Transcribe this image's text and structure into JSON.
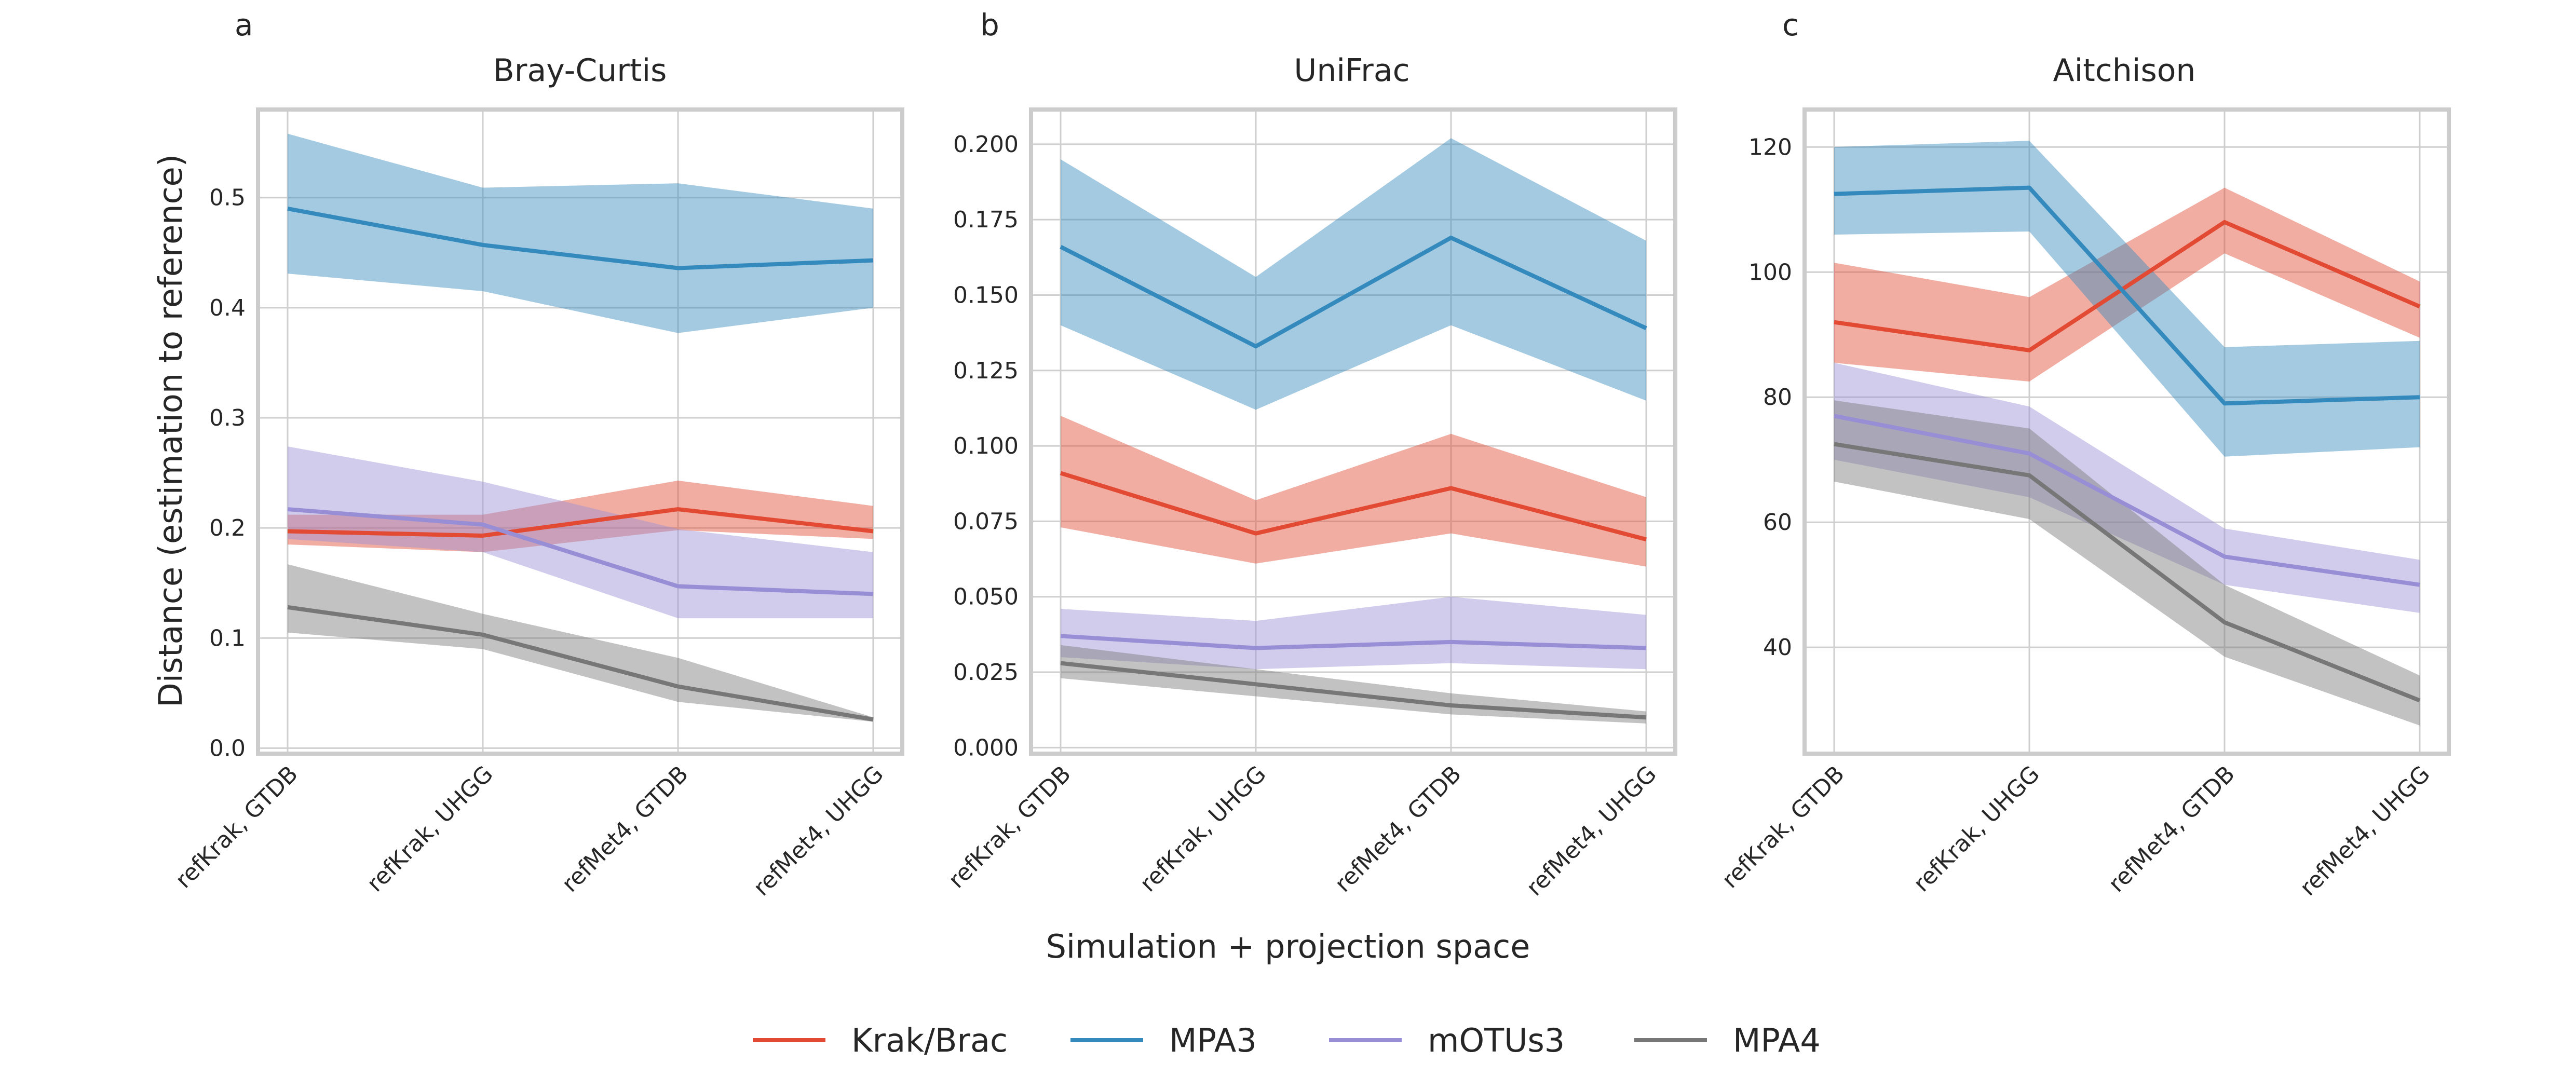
{
  "figure": {
    "ylabel": "Distance (estimation to reference)",
    "xlabel": "Simulation + projection space",
    "categories": [
      "refKrak, GTDB",
      "refKrak, UHGG",
      "refMet4, GTDB",
      "refMet4, UHGG"
    ]
  },
  "legend": {
    "placement": "bottom-center",
    "items": [
      {
        "label": "Krak/Brac",
        "color": "#e24a33"
      },
      {
        "label": "MPA3",
        "color": "#348abd"
      },
      {
        "label": "mOTUs3",
        "color": "#988ed5"
      },
      {
        "label": "MPA4",
        "color": "#777777"
      }
    ]
  },
  "chart_data": [
    {
      "type": "line",
      "letter": "a",
      "title": "Bray-Curtis",
      "ylim": [
        -0.005,
        0.58
      ],
      "yticks": [
        0.0,
        0.1,
        0.2,
        0.3,
        0.4,
        0.5
      ],
      "ytick_labels": [
        "0.0",
        "0.1",
        "0.2",
        "0.3",
        "0.4",
        "0.5"
      ],
      "grid": true,
      "series": [
        {
          "name": "Krak/Brac",
          "color": "#e24a33",
          "values": [
            0.197,
            0.193,
            0.217,
            0.197
          ],
          "lower": [
            0.185,
            0.178,
            0.198,
            0.19
          ],
          "upper": [
            0.212,
            0.212,
            0.243,
            0.22
          ]
        },
        {
          "name": "MPA3",
          "color": "#348abd",
          "values": [
            0.49,
            0.457,
            0.436,
            0.443
          ],
          "lower": [
            0.431,
            0.415,
            0.377,
            0.4
          ],
          "upper": [
            0.558,
            0.509,
            0.513,
            0.49
          ]
        },
        {
          "name": "mOTUs3",
          "color": "#988ed5",
          "values": [
            0.217,
            0.203,
            0.147,
            0.14
          ],
          "lower": [
            0.19,
            0.178,
            0.118,
            0.118
          ],
          "upper": [
            0.274,
            0.242,
            0.199,
            0.178
          ]
        },
        {
          "name": "MPA4",
          "color": "#777777",
          "values": [
            0.128,
            0.103,
            0.056,
            0.026
          ],
          "lower": [
            0.105,
            0.09,
            0.042,
            0.024
          ],
          "upper": [
            0.167,
            0.122,
            0.082,
            0.028
          ]
        }
      ]
    },
    {
      "type": "line",
      "letter": "b",
      "title": "UniFrac",
      "ylim": [
        -0.002,
        0.2115
      ],
      "yticks": [
        0.0,
        0.025,
        0.05,
        0.075,
        0.1,
        0.125,
        0.15,
        0.175,
        0.2
      ],
      "ytick_labels": [
        "0.000",
        "0.025",
        "0.050",
        "0.075",
        "0.100",
        "0.125",
        "0.150",
        "0.175",
        "0.200"
      ],
      "grid": true,
      "series": [
        {
          "name": "Krak/Brac",
          "color": "#e24a33",
          "values": [
            0.091,
            0.071,
            0.086,
            0.069
          ],
          "lower": [
            0.073,
            0.061,
            0.071,
            0.06
          ],
          "upper": [
            0.11,
            0.082,
            0.104,
            0.083
          ]
        },
        {
          "name": "MPA3",
          "color": "#348abd",
          "values": [
            0.166,
            0.133,
            0.169,
            0.139
          ],
          "lower": [
            0.14,
            0.112,
            0.14,
            0.115
          ],
          "upper": [
            0.195,
            0.156,
            0.202,
            0.168
          ]
        },
        {
          "name": "mOTUs3",
          "color": "#988ed5",
          "values": [
            0.037,
            0.033,
            0.035,
            0.033
          ],
          "lower": [
            0.03,
            0.026,
            0.028,
            0.026
          ],
          "upper": [
            0.046,
            0.042,
            0.05,
            0.044
          ]
        },
        {
          "name": "MPA4",
          "color": "#777777",
          "values": [
            0.028,
            0.021,
            0.014,
            0.01
          ],
          "lower": [
            0.023,
            0.017,
            0.011,
            0.008
          ],
          "upper": [
            0.034,
            0.026,
            0.018,
            0.012
          ]
        }
      ]
    },
    {
      "type": "line",
      "letter": "c",
      "title": "Aitchison",
      "ylim": [
        23.0,
        126.0
      ],
      "yticks": [
        40,
        60,
        80,
        100,
        120
      ],
      "ytick_labels": [
        "40",
        "60",
        "80",
        "100",
        "120"
      ],
      "grid": true,
      "series": [
        {
          "name": "Krak/Brac",
          "color": "#e24a33",
          "values": [
            92.0,
            87.5,
            108.0,
            94.5
          ],
          "lower": [
            85.5,
            82.5,
            103.0,
            89.5
          ],
          "upper": [
            101.5,
            96.0,
            113.5,
            98.5
          ]
        },
        {
          "name": "MPA3",
          "color": "#348abd",
          "values": [
            112.5,
            113.5,
            79.0,
            80.0
          ],
          "lower": [
            106.0,
            106.5,
            70.5,
            72.0
          ],
          "upper": [
            120.0,
            121.0,
            88.0,
            89.0
          ]
        },
        {
          "name": "mOTUs3",
          "color": "#988ed5",
          "values": [
            77.0,
            71.0,
            54.5,
            50.0
          ],
          "lower": [
            70.0,
            64.0,
            50.0,
            45.5
          ],
          "upper": [
            85.5,
            78.5,
            59.0,
            54.0
          ]
        },
        {
          "name": "MPA4",
          "color": "#777777",
          "values": [
            72.5,
            67.5,
            44.0,
            31.5
          ],
          "lower": [
            66.5,
            60.5,
            38.5,
            27.5
          ],
          "upper": [
            79.5,
            75.0,
            50.0,
            35.5
          ]
        }
      ]
    }
  ]
}
